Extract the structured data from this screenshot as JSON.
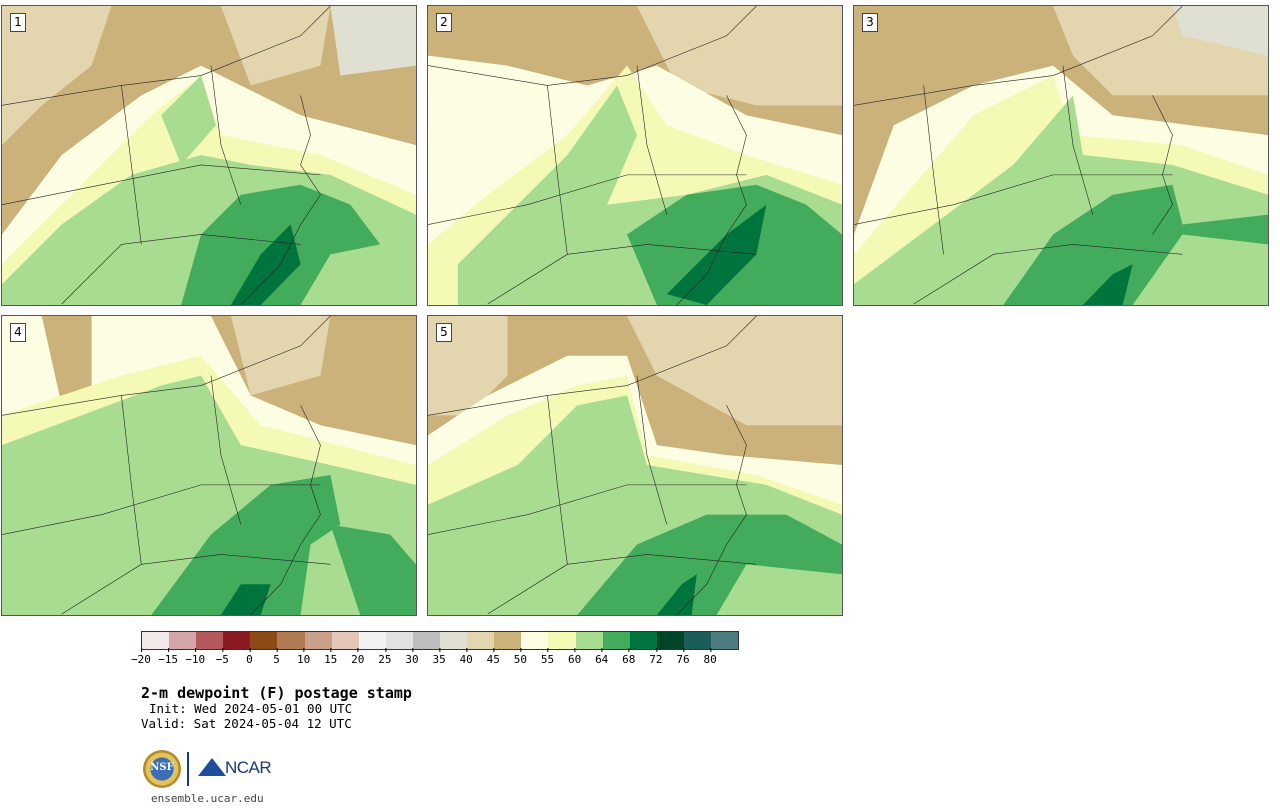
{
  "panels": [
    {
      "id": "1",
      "label": "1"
    },
    {
      "id": "2",
      "label": "2"
    },
    {
      "id": "3",
      "label": "3"
    },
    {
      "id": "4",
      "label": "4"
    },
    {
      "id": "5",
      "label": "5"
    }
  ],
  "colorbar": {
    "colors": [
      "#f3e8e8",
      "#d4a6a8",
      "#b45a5e",
      "#8b1a22",
      "#8c4a17",
      "#b07a52",
      "#c9a08a",
      "#e3c6b8",
      "#f2f2f2",
      "#e2e2e2",
      "#bdbdbd",
      "#e0e0d2",
      "#e3d5ad",
      "#cbb27a",
      "#fdfde3",
      "#f5f9b6",
      "#a8dc90",
      "#43ac5c",
      "#00743d",
      "#00452a",
      "#1c5d5a",
      "#4c7c7f"
    ],
    "ticks": [
      "-20",
      "-15",
      "-10",
      "-5",
      "0",
      "5",
      "10",
      "15",
      "20",
      "25",
      "30",
      "35",
      "40",
      "45",
      "50",
      "55",
      "60",
      "64",
      "68",
      "72",
      "76",
      "80"
    ]
  },
  "text": {
    "title": "2-m dewpoint (F) postage stamp",
    "init": "Init: Wed 2024-05-01 00 UTC",
    "valid": "Valid: Sat 2024-05-04 12 UTC",
    "site": "ensemble.ucar.edu"
  },
  "logos": {
    "nsf_label": "NSF",
    "ncar_label": "NCAR"
  }
}
